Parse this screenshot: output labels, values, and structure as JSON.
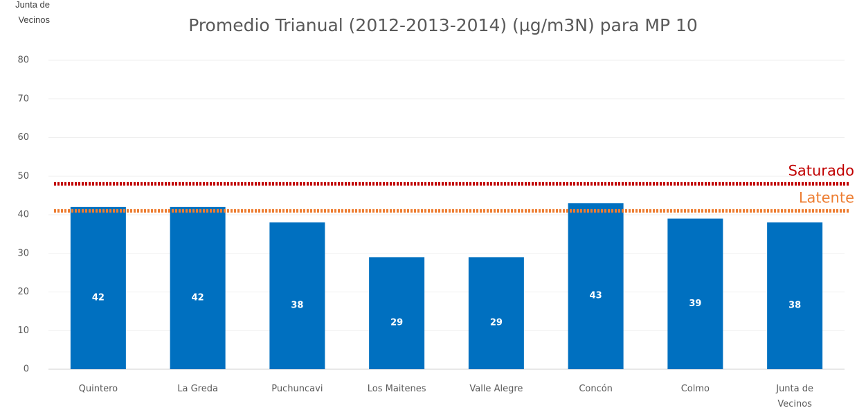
{
  "chart_data": {
    "type": "bar",
    "title": "Promedio Trianual (2012-2013-2014) (µg/m3N) para MP 10",
    "annotation": "Junta de Vecinos",
    "categories": [
      "Quintero",
      "La Greda",
      "Puchuncavi",
      "Los Maitenes",
      "Valle Alegre",
      "Concón",
      "Colmo",
      "Junta de Vecinos"
    ],
    "values": [
      42,
      42,
      38,
      29,
      29,
      43,
      39,
      38
    ],
    "color": "#0070c0",
    "ylim": [
      0,
      80
    ],
    "yticks": [
      0,
      10,
      20,
      30,
      40,
      50,
      60,
      70,
      80
    ],
    "grid": true,
    "reference_lines": [
      {
        "name": "Saturado",
        "value": 48,
        "color": "#c00000"
      },
      {
        "name": "Latente",
        "value": 41,
        "color": "#ed7d31"
      }
    ]
  }
}
